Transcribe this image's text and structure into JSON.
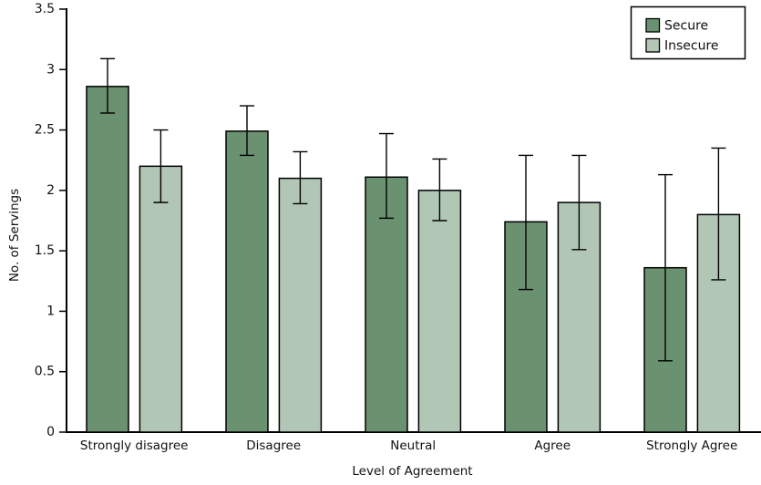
{
  "chart_data": {
    "type": "bar",
    "title": "",
    "xlabel": "Level of Agreement",
    "ylabel": "No. of Servings",
    "ylim": [
      0,
      3.5
    ],
    "yticks": [
      0,
      0.5,
      1,
      1.5,
      2,
      2.5,
      3,
      3.5
    ],
    "grid": false,
    "legend_position": "top-right",
    "background": "#ffffff",
    "axis_color": "#000000",
    "bar_border_color": "#000000",
    "error_bar_color": "#000000",
    "categories": [
      "Strongly disagree",
      "Disagree",
      "Neutral",
      "Agree",
      "Strongly Agree"
    ],
    "series": [
      {
        "name": "Secure",
        "color": "#6A9170",
        "values": [
          2.86,
          2.49,
          2.11,
          1.74,
          1.36
        ],
        "error_low": [
          2.64,
          2.29,
          1.77,
          1.18,
          0.59
        ],
        "error_high": [
          3.09,
          2.7,
          2.47,
          2.29,
          2.13
        ]
      },
      {
        "name": "Insecure",
        "color": "#B2C6B6",
        "values": [
          2.2,
          2.1,
          2.0,
          1.9,
          1.8
        ],
        "error_low": [
          1.9,
          1.89,
          1.75,
          1.51,
          1.26
        ],
        "error_high": [
          2.5,
          2.32,
          2.26,
          2.29,
          2.35
        ]
      }
    ]
  }
}
